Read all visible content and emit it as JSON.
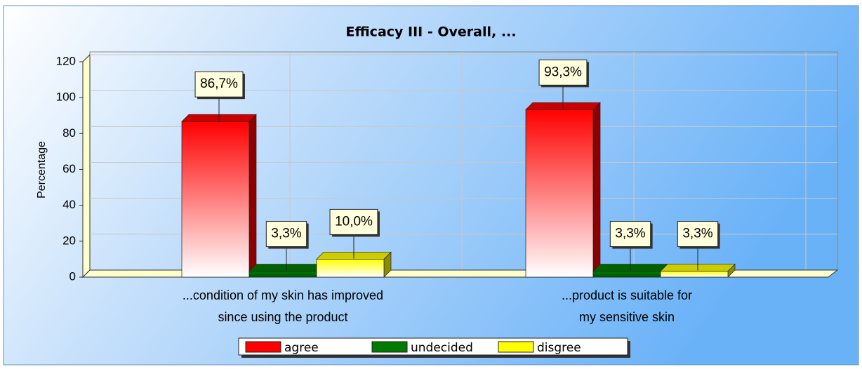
{
  "chart_data": {
    "type": "bar3d",
    "title": "Efficacy III - Overall, ...",
    "y_label": "Percentage",
    "categories": [
      [
        "...condition of my skin has improved",
        "since using the product"
      ],
      [
        "...product is suitable for",
        "my sensitive skin"
      ]
    ],
    "series": [
      {
        "name": "agree",
        "color": "#ff0000",
        "values": [
          86.7,
          93.3
        ],
        "value_labels": [
          "86,7%",
          "93,3%"
        ]
      },
      {
        "name": "undecided",
        "color": "#007a00",
        "values": [
          3.3,
          3.3
        ],
        "value_labels": [
          "3,3%",
          "3,3%"
        ]
      },
      {
        "name": "disgree",
        "color": "#ffff00",
        "values": [
          10.0,
          3.3
        ],
        "value_labels": [
          "10,0%",
          "3,3%"
        ]
      }
    ],
    "ylim": [
      0,
      120
    ],
    "yticks": [
      0,
      20,
      40,
      60,
      80,
      100,
      120
    ],
    "grid": true,
    "legend": "bottom"
  }
}
